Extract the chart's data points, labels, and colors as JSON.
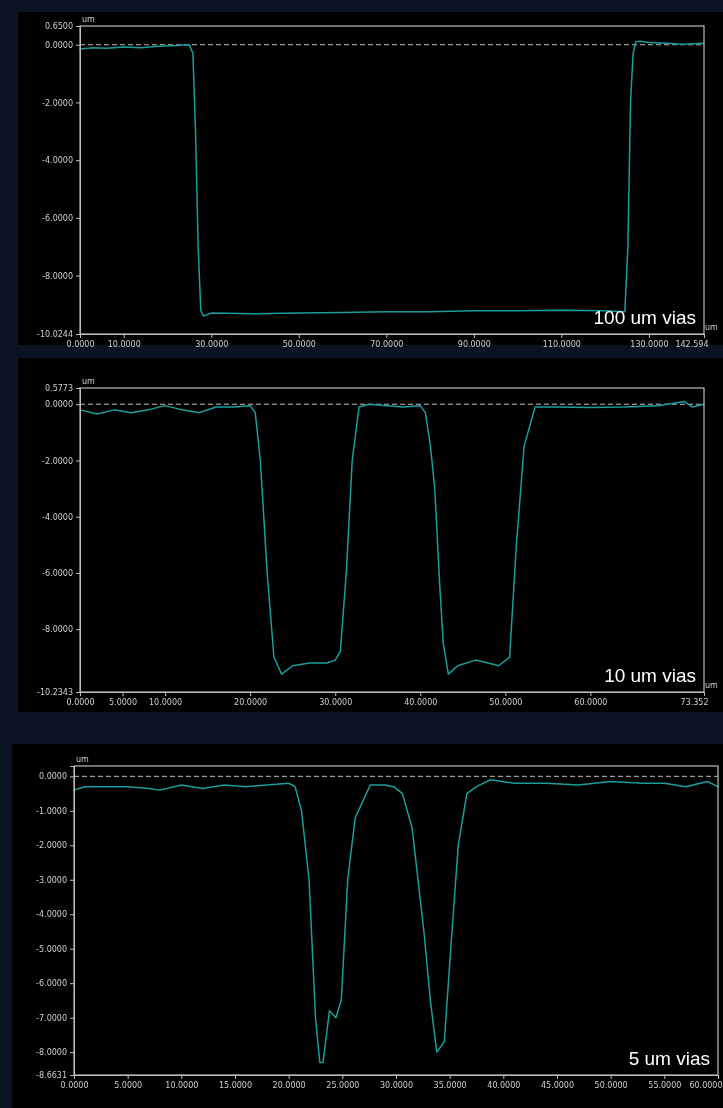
{
  "chart_data": [
    {
      "type": "line",
      "ylabel": "um",
      "xlabel": "um",
      "xlim": [
        0,
        142.594
      ],
      "xticks": [
        {
          "value": 0,
          "label": "0.0000"
        },
        {
          "value": 10,
          "label": "10.0000"
        },
        {
          "value": 30,
          "label": "30.0000"
        },
        {
          "value": 50,
          "label": "50.0000"
        },
        {
          "value": 70,
          "label": "70.0000"
        },
        {
          "value": 90,
          "label": "90.0000"
        },
        {
          "value": 110,
          "label": "110.0000"
        },
        {
          "value": 130,
          "label": "130.0000"
        },
        {
          "value": 142.594,
          "label": "142.594"
        }
      ],
      "ylim": [
        -10.0244,
        0.65
      ],
      "yticks": [
        {
          "value": 0.65,
          "label": "0.6500"
        },
        {
          "value": 0,
          "label": "0.0000"
        },
        {
          "value": -2,
          "label": "-2.0000"
        },
        {
          "value": -4,
          "label": "-4.0000"
        },
        {
          "value": -6,
          "label": "-6.0000"
        },
        {
          "value": -8,
          "label": "-8.0000"
        },
        {
          "value": -10.0244,
          "label": "-10.0244"
        }
      ],
      "ref_lines": [
        {
          "axis": "y",
          "value": 0,
          "color": "#bbbbbb",
          "line_style": "dashed"
        }
      ],
      "annotations": [
        "100 um vias"
      ],
      "series": [
        {
          "color": "#1a9e9a",
          "x": [
            0,
            3,
            6,
            10,
            14,
            18,
            22,
            25,
            25.8,
            26.4,
            27,
            27.6,
            28.2,
            30,
            40,
            50,
            60,
            70,
            80,
            90,
            100,
            110,
            120,
            124.5,
            125.2,
            125.8,
            126.4,
            127,
            128,
            130,
            134,
            138,
            142.594
          ],
          "values": [
            -0.15,
            -0.1,
            -0.12,
            -0.08,
            -0.1,
            -0.05,
            -0.03,
            0,
            -0.3,
            -3,
            -7,
            -9.2,
            -9.4,
            -9.3,
            -9.32,
            -9.3,
            -9.28,
            -9.25,
            -9.25,
            -9.22,
            -9.22,
            -9.2,
            -9.22,
            -9.25,
            -7,
            -2,
            -0.3,
            0.1,
            0.12,
            0.08,
            0.05,
            0.02,
            0.05
          ]
        }
      ]
    },
    {
      "type": "line",
      "ylabel": "um",
      "xlabel": "um",
      "xlim": [
        0,
        73.352
      ],
      "xticks": [
        {
          "value": 0,
          "label": "0.0000"
        },
        {
          "value": 5,
          "label": "5.0000"
        },
        {
          "value": 10,
          "label": "10.0000"
        },
        {
          "value": 20,
          "label": "20.0000"
        },
        {
          "value": 30,
          "label": "30.0000"
        },
        {
          "value": 40,
          "label": "40.0000"
        },
        {
          "value": 50,
          "label": "50.0000"
        },
        {
          "value": 60,
          "label": "60.0000"
        },
        {
          "value": 73.352,
          "label": "73.352"
        }
      ],
      "ylim": [
        -10.2343,
        0.5773
      ],
      "yticks": [
        {
          "value": 0.5773,
          "label": "0.5773"
        },
        {
          "value": 0,
          "label": "0.0000"
        },
        {
          "value": -2,
          "label": "-2.0000"
        },
        {
          "value": -4,
          "label": "-4.0000"
        },
        {
          "value": -6,
          "label": "-6.0000"
        },
        {
          "value": -8,
          "label": "-8.0000"
        },
        {
          "value": -10.2343,
          "label": "-10.2343"
        }
      ],
      "ref_lines": [
        {
          "axis": "y",
          "value": 0,
          "color": "#bbbbbb",
          "line_style": "dashed"
        }
      ],
      "annotations": [
        "10 um vias"
      ],
      "series": [
        {
          "color": "#1a9e9a",
          "x": [
            0,
            2,
            4,
            6,
            8,
            10,
            12,
            14,
            16,
            18,
            20,
            20.6,
            21.2,
            22,
            22.8,
            23.7,
            25,
            27,
            29,
            30,
            30.6,
            31.3,
            32,
            32.8,
            34,
            36,
            38,
            40,
            40.6,
            41.2,
            41.7,
            42.3,
            42.7,
            43.3,
            44.4,
            46.5,
            48,
            49.2,
            50.5,
            51.3,
            52.2,
            53.5,
            56,
            60,
            64,
            68,
            71,
            72,
            73.352
          ],
          "values": [
            -0.2,
            -0.35,
            -0.2,
            -0.3,
            -0.2,
            -0.05,
            -0.2,
            -0.3,
            -0.1,
            -0.1,
            -0.05,
            -0.3,
            -2,
            -6,
            -9,
            -9.6,
            -9.3,
            -9.2,
            -9.2,
            -9.1,
            -8.8,
            -6,
            -2,
            -0.1,
            0,
            -0.05,
            -0.1,
            -0.05,
            -0.3,
            -1.5,
            -3,
            -6.5,
            -8.5,
            -9.6,
            -9.3,
            -9.1,
            -9.2,
            -9.3,
            -9,
            -5,
            -1.5,
            -0.1,
            -0.1,
            -0.12,
            -0.1,
            -0.05,
            0.1,
            -0.1,
            0
          ]
        }
      ]
    },
    {
      "type": "line",
      "ylabel": "um",
      "xlim": [
        0,
        60
      ],
      "xticks": [
        {
          "value": 0,
          "label": "0.0000"
        },
        {
          "value": 5,
          "label": "5.0000"
        },
        {
          "value": 10,
          "label": "10.0000"
        },
        {
          "value": 15,
          "label": "15.0000"
        },
        {
          "value": 20,
          "label": "20.0000"
        },
        {
          "value": 25,
          "label": "25.0000"
        },
        {
          "value": 30,
          "label": "30.0000"
        },
        {
          "value": 35,
          "label": "35.0000"
        },
        {
          "value": 40,
          "label": "40.0000"
        },
        {
          "value": 45,
          "label": "45.0000"
        },
        {
          "value": 50,
          "label": "50.0000"
        },
        {
          "value": 55,
          "label": "55.0000"
        },
        {
          "value": 60,
          "label": "60.0000"
        }
      ],
      "ylim": [
        -8.6631,
        0.3
      ],
      "yticks": [
        {
          "value": 0,
          "label": "0.0000"
        },
        {
          "value": -1,
          "label": "-1.0000"
        },
        {
          "value": -2,
          "label": "-2.0000"
        },
        {
          "value": -3,
          "label": "-3.0000"
        },
        {
          "value": -4,
          "label": "-4.0000"
        },
        {
          "value": -5,
          "label": "-5.0000"
        },
        {
          "value": -6,
          "label": "-6.0000"
        },
        {
          "value": -7,
          "label": "-7.0000"
        },
        {
          "value": -8,
          "label": "-8.0000"
        },
        {
          "value": -8.6631,
          "label": "-8.6631"
        }
      ],
      "ref_lines": [
        {
          "axis": "y",
          "value": 0,
          "color": "#bbbbbb",
          "line_style": "dashed"
        }
      ],
      "annotations": [
        "5 um vias"
      ],
      "series": [
        {
          "color": "#1a9e9a",
          "x": [
            0,
            1,
            3,
            5,
            7,
            8,
            10,
            12,
            14,
            16,
            18,
            20,
            20.6,
            21.2,
            21.9,
            22.5,
            22.9,
            23.2,
            23.8,
            24.4,
            24.9,
            25.5,
            26.2,
            26.8,
            27.6,
            28.9,
            29.8,
            30.6,
            31.5,
            32.6,
            33.2,
            33.8,
            34.5,
            35.1,
            35.8,
            36.6,
            37.5,
            38.8,
            41,
            44,
            47,
            50,
            53,
            55,
            57,
            59,
            60
          ],
          "values": [
            -0.4,
            -0.3,
            -0.3,
            -0.3,
            -0.35,
            -0.4,
            -0.25,
            -0.35,
            -0.25,
            -0.3,
            -0.25,
            -0.2,
            -0.3,
            -1,
            -3,
            -7,
            -8.3,
            -8.3,
            -6.8,
            -7,
            -6.5,
            -3,
            -1.2,
            -0.8,
            -0.25,
            -0.25,
            -0.3,
            -0.5,
            -1.5,
            -4.5,
            -6.5,
            -8,
            -7.7,
            -5,
            -2,
            -0.5,
            -0.3,
            -0.1,
            -0.2,
            -0.2,
            -0.25,
            -0.15,
            -0.2,
            -0.2,
            -0.3,
            -0.15,
            -0.3
          ]
        }
      ]
    }
  ]
}
